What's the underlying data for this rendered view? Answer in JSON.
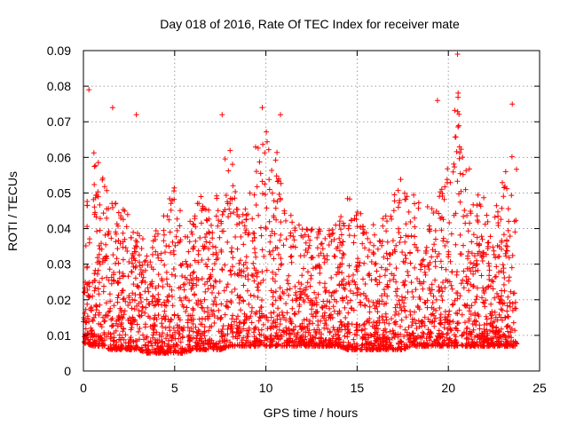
{
  "chart_data": {
    "type": "scatter",
    "title": "Day 018 of 2016, Rate Of TEC Index for receiver mate",
    "xlabel": "GPS time / hours",
    "ylabel": "ROTI / TECUs",
    "xlim": [
      0,
      25
    ],
    "ylim": [
      0,
      0.09
    ],
    "xticks": [
      "0",
      "5",
      "10",
      "15",
      "20",
      "25"
    ],
    "yticks": [
      "0",
      "0.01",
      "0.02",
      "0.03",
      "0.04",
      "0.05",
      "0.06",
      "0.07",
      "0.08",
      "0.09"
    ],
    "grid": true,
    "marker": "+",
    "color": "#ff0000",
    "x_range_of_points": [
      0,
      23.75
    ],
    "envelope": {
      "hours": [
        0,
        0.5,
        1,
        1.5,
        2,
        2.5,
        3,
        3.5,
        4,
        4.5,
        5,
        5.5,
        6,
        6.5,
        7,
        7.5,
        8,
        8.5,
        9,
        9.5,
        10,
        10.5,
        11,
        11.5,
        12,
        12.5,
        13,
        13.5,
        14,
        14.5,
        15,
        15.5,
        16,
        16.5,
        17,
        17.5,
        18,
        18.5,
        19,
        19.5,
        20,
        20.5,
        21,
        21.5,
        22,
        22.5,
        23,
        23.5
      ],
      "typical_min": [
        0.008,
        0.007,
        0.007,
        0.006,
        0.006,
        0.006,
        0.006,
        0.005,
        0.005,
        0.005,
        0.005,
        0.005,
        0.006,
        0.006,
        0.006,
        0.006,
        0.007,
        0.007,
        0.007,
        0.007,
        0.007,
        0.007,
        0.007,
        0.007,
        0.007,
        0.007,
        0.007,
        0.007,
        0.007,
        0.006,
        0.006,
        0.006,
        0.006,
        0.006,
        0.006,
        0.006,
        0.007,
        0.007,
        0.007,
        0.007,
        0.007,
        0.007,
        0.007,
        0.007,
        0.007,
        0.007,
        0.007,
        0.007
      ],
      "typical_max": [
        0.045,
        0.065,
        0.055,
        0.05,
        0.05,
        0.045,
        0.04,
        0.035,
        0.04,
        0.045,
        0.055,
        0.04,
        0.045,
        0.05,
        0.045,
        0.06,
        0.065,
        0.045,
        0.05,
        0.065,
        0.07,
        0.065,
        0.05,
        0.045,
        0.04,
        0.04,
        0.04,
        0.04,
        0.045,
        0.05,
        0.045,
        0.045,
        0.04,
        0.045,
        0.05,
        0.055,
        0.05,
        0.05,
        0.045,
        0.05,
        0.06,
        0.08,
        0.06,
        0.05,
        0.05,
        0.045,
        0.055,
        0.065
      ]
    },
    "notable_peaks": [
      {
        "x": 0.3,
        "y": 0.079
      },
      {
        "x": 1.6,
        "y": 0.074
      },
      {
        "x": 2.9,
        "y": 0.072
      },
      {
        "x": 7.6,
        "y": 0.072
      },
      {
        "x": 9.8,
        "y": 0.074
      },
      {
        "x": 10.8,
        "y": 0.072
      },
      {
        "x": 19.4,
        "y": 0.076
      },
      {
        "x": 20.5,
        "y": 0.089
      },
      {
        "x": 23.5,
        "y": 0.075
      }
    ]
  }
}
